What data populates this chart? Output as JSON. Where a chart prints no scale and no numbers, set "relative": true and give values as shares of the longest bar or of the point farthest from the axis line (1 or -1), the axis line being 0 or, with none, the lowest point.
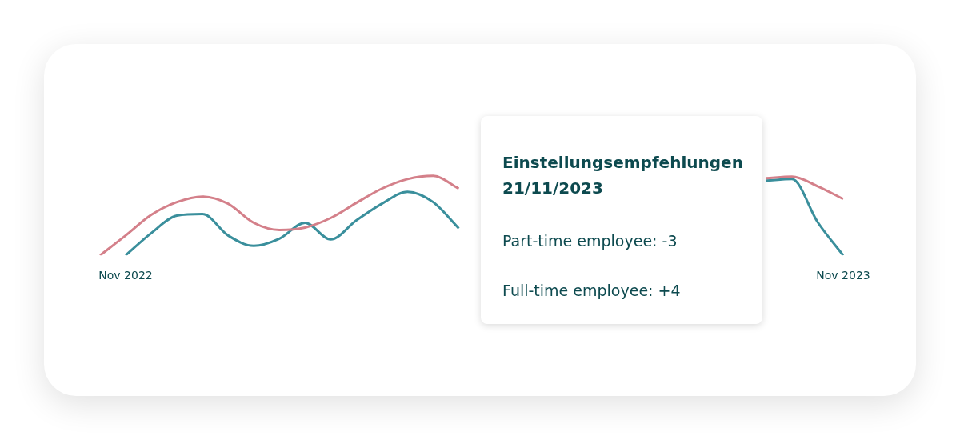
{
  "chart_data": {
    "type": "line",
    "relative": true,
    "categories": [
      null,
      "Nov 2022",
      null,
      null,
      null,
      null,
      null,
      null,
      null,
      null,
      null,
      null,
      null,
      null,
      null,
      null,
      null,
      null,
      null,
      null,
      null,
      null,
      null,
      null,
      null,
      null,
      null,
      null,
      null,
      "Nov 2023"
    ],
    "series": [
      {
        "color": "#d4808a",
        "values": [
          0,
          0.25,
          0.51,
          0.67,
          0.74,
          0.65,
          0.41,
          0.32,
          0.35,
          0.47,
          0.66,
          0.84,
          0.96,
          1,
          0.84,
          null,
          null,
          null,
          null,
          null,
          null,
          null,
          null,
          null,
          null,
          null,
          0.97,
          0.99,
          0.87,
          0.71
        ]
      },
      {
        "color": "#3a8f9c",
        "values": [
          null,
          0,
          0.28,
          0.5,
          0.52,
          0.25,
          0.12,
          0.21,
          0.41,
          0.2,
          0.44,
          0.65,
          0.8,
          0.67,
          0.34,
          null,
          null,
          null,
          null,
          null,
          null,
          null,
          null,
          null,
          null,
          null,
          0.94,
          0.96,
          0.42,
          0
        ]
      }
    ],
    "annotations": [
      "Einstellungsempfehlungen",
      "21/11/2023",
      "Part-time employee: -3",
      "Full-time employee: +4"
    ]
  }
}
